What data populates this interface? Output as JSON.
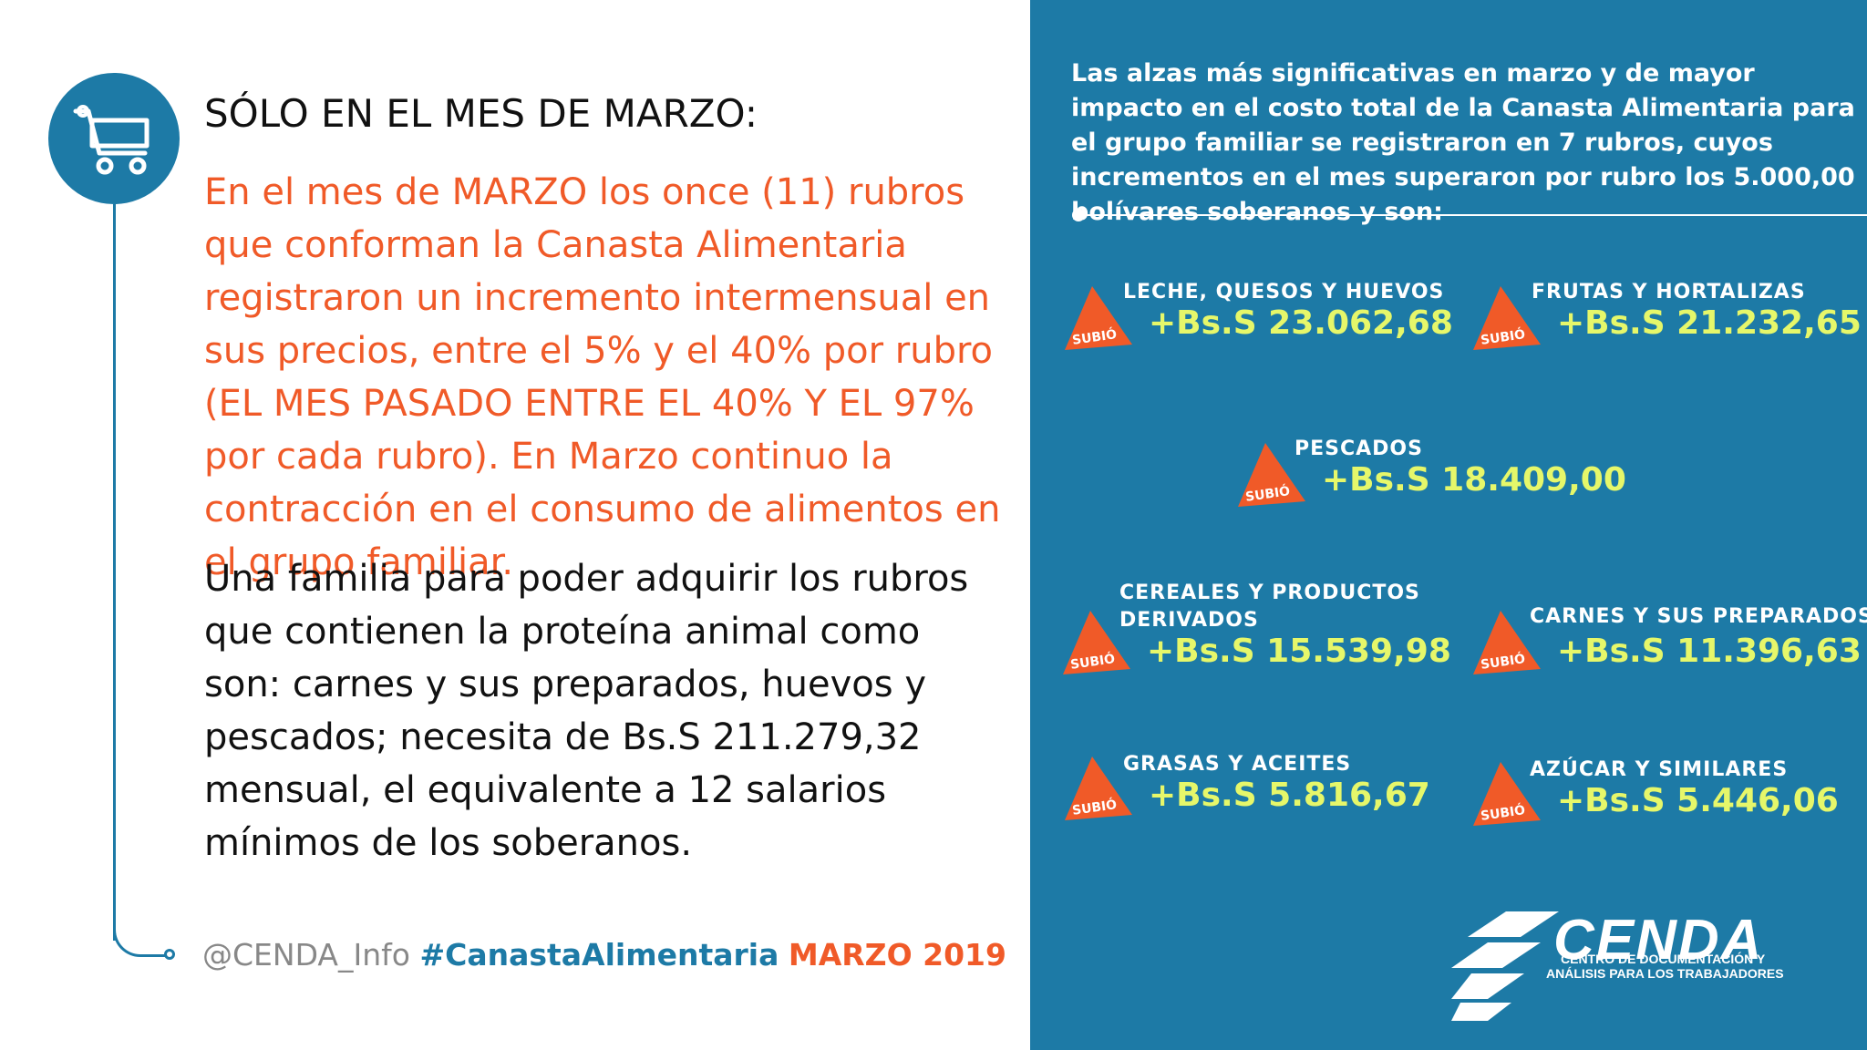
{
  "heading": "SÓLO EN EL MES DE MARZO:",
  "orange_paragraph": "En el mes de MARZO los once (11) rubros que conforman la Canasta Alimentaria registraron un incremento intermensual en sus precios, entre el 5% y el 40% por rubro (EL MES PASADO ENTRE EL 40% Y EL 97% por cada rubro). En Marzo continuo la contracción en el consumo de alimentos en el grupo familiar.",
  "black_paragraph": "Una familia para poder adquirir los rubros que contienen la proteína animal como son: carnes y sus preparados, huevos y pescados; necesita de Bs.S 211.279,32 mensual, el equivalente a 12 salarios mínimos de los soberanos.",
  "footer": {
    "handle": "@CENDA_Info",
    "hashtag": "#CanastaAlimentaria",
    "month": "MARZO 2019"
  },
  "intro": "Las alzas más significativas en marzo y de mayor impacto en el costo total de la Canasta Alimentaria para el grupo familiar se registraron en 7 rubros, cuyos incrementos en el mes superaron por rubro los 5.000,00 bolívares soberanos y son:",
  "badge_text": "SUBIÓ",
  "items": [
    {
      "label": "LECHE, QUESOS Y HUEVOS",
      "value": "+Bs.S 23.062,68"
    },
    {
      "label": "FRUTAS Y HORTALIZAS",
      "value": "+Bs.S 21.232,65"
    },
    {
      "label": "PESCADOS",
      "value": "+Bs.S 18.409,00"
    },
    {
      "label": "CEREALES Y PRODUCTOS DERIVADOS",
      "label_line1": "CEREALES Y PRODUCTOS",
      "label_line2": "DERIVADOS",
      "value": "+Bs.S 15.539,98"
    },
    {
      "label": "CARNES Y SUS PREPARADOS",
      "value": "+Bs.S 11.396,63"
    },
    {
      "label": "GRASAS Y ACEITES",
      "value": "+Bs.S 5.816,67"
    },
    {
      "label": "AZÚCAR Y SIMILARES",
      "value": "+Bs.S 5.446,06"
    }
  ],
  "logo": {
    "name": "CENDA",
    "subtitle_line1": "CENTRO DE DOCUMENTACIÓN Y",
    "subtitle_line2": "ANÁLISIS PARA LOS TRABAJADORES"
  },
  "colors": {
    "panel_blue": "#1d7aa6",
    "accent_orange": "#f05a28",
    "value_yellow": "#e6f76a"
  }
}
